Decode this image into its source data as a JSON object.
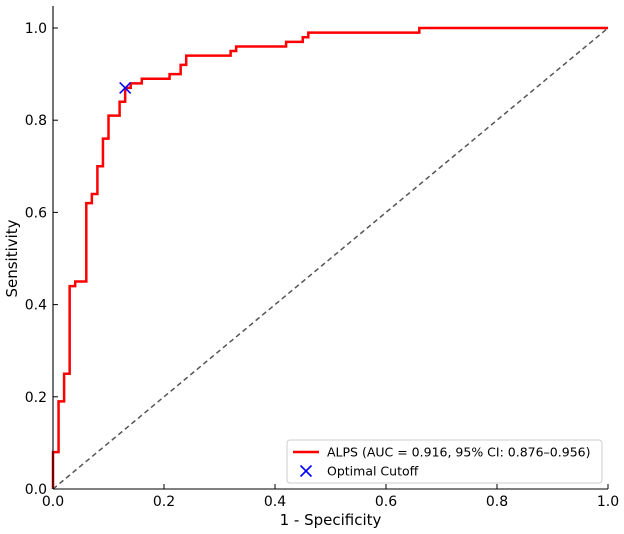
{
  "chart_data": {
    "type": "line",
    "title": "",
    "xlabel": "1 - Specificity",
    "ylabel": "Sensitivity",
    "xlim": [
      0.0,
      1.0
    ],
    "ylim": [
      0.0,
      1.0
    ],
    "xticks": [
      "0.0",
      "0.2",
      "0.4",
      "0.6",
      "0.8",
      "1.0"
    ],
    "yticks": [
      "0.0",
      "0.2",
      "0.4",
      "0.6",
      "0.8",
      "1.0"
    ],
    "grid": false,
    "legend_position": "bottom-right",
    "series": [
      {
        "name": "ALPS (AUC = 0.916, 95% CI: 0.876–0.956)",
        "color": "#ff0000",
        "style": "solid",
        "points": [
          [
            0.0,
            0.0
          ],
          [
            0.0,
            0.08
          ],
          [
            0.01,
            0.08
          ],
          [
            0.01,
            0.19
          ],
          [
            0.02,
            0.19
          ],
          [
            0.02,
            0.25
          ],
          [
            0.03,
            0.25
          ],
          [
            0.03,
            0.44
          ],
          [
            0.04,
            0.44
          ],
          [
            0.04,
            0.45
          ],
          [
            0.06,
            0.45
          ],
          [
            0.06,
            0.62
          ],
          [
            0.07,
            0.62
          ],
          [
            0.07,
            0.64
          ],
          [
            0.08,
            0.64
          ],
          [
            0.08,
            0.7
          ],
          [
            0.09,
            0.7
          ],
          [
            0.09,
            0.76
          ],
          [
            0.1,
            0.76
          ],
          [
            0.1,
            0.81
          ],
          [
            0.12,
            0.81
          ],
          [
            0.12,
            0.84
          ],
          [
            0.13,
            0.84
          ],
          [
            0.13,
            0.87
          ],
          [
            0.14,
            0.87
          ],
          [
            0.14,
            0.88
          ],
          [
            0.16,
            0.88
          ],
          [
            0.16,
            0.89
          ],
          [
            0.21,
            0.89
          ],
          [
            0.21,
            0.9
          ],
          [
            0.23,
            0.9
          ],
          [
            0.23,
            0.92
          ],
          [
            0.24,
            0.92
          ],
          [
            0.24,
            0.94
          ],
          [
            0.32,
            0.94
          ],
          [
            0.32,
            0.95
          ],
          [
            0.33,
            0.95
          ],
          [
            0.33,
            0.96
          ],
          [
            0.42,
            0.96
          ],
          [
            0.42,
            0.97
          ],
          [
            0.45,
            0.97
          ],
          [
            0.45,
            0.98
          ],
          [
            0.46,
            0.98
          ],
          [
            0.46,
            0.99
          ],
          [
            0.66,
            0.99
          ],
          [
            0.66,
            1.0
          ],
          [
            1.0,
            1.0
          ]
        ]
      },
      {
        "name": "",
        "color": "#555555",
        "style": "dashed",
        "points": [
          [
            0.0,
            0.0
          ],
          [
            1.0,
            1.0
          ]
        ]
      }
    ],
    "markers": [
      {
        "name": "Optimal Cutoff",
        "x": 0.13,
        "y": 0.87,
        "color": "#0000ff",
        "symbol": "x"
      }
    ]
  }
}
